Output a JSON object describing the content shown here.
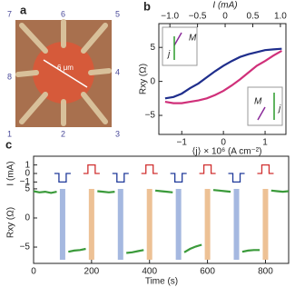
{
  "panel_a": {
    "label": "a",
    "scale": "6 μm",
    "contacts": [
      "1",
      "2",
      "3",
      "4",
      "5",
      "6",
      "7",
      "8"
    ]
  },
  "chart_data": [
    {
      "type": "line",
      "panel": "b",
      "xlabel": "⟨j⟩ × 10⁶ (A cm⁻²)",
      "ylabel": "Rxy (Ω)",
      "x2label": "I (mA)",
      "xlim": [
        -1.55,
        1.5
      ],
      "xticks": [
        {
          "value": -1,
          "label": "−1"
        },
        0,
        1
      ],
      "x2lim": [
        -1.2,
        1.1
      ],
      "x2ticks": [
        {
          "value": -1,
          "label": "−1.0"
        },
        {
          "value": -0.5,
          "label": "−0.5"
        },
        0,
        0.5,
        {
          "value": 1,
          "label": "1.0"
        }
      ],
      "ylim": [
        -7.8,
        8.5
      ],
      "yticks": [
        {
          "value": -5,
          "label": "−5"
        },
        0,
        5
      ],
      "annotations": [
        "M",
        "j",
        "M",
        "j"
      ],
      "series": [
        {
          "color": "#1f2e8c",
          "x": [
            -1.4,
            -1.2,
            -1.0,
            -0.8,
            -0.6,
            -0.4,
            -0.2,
            0,
            0.2,
            0.4,
            0.6,
            0.8,
            1.0,
            1.2,
            1.4
          ],
          "values": [
            -2.5,
            -2.3,
            -1.8,
            -1.0,
            -0.3,
            0.6,
            1.5,
            2.3,
            3.0,
            3.6,
            4.0,
            4.3,
            4.6,
            4.7,
            4.8
          ]
        },
        {
          "color": "#d0307a",
          "x": [
            -1.4,
            -1.2,
            -1.0,
            -0.8,
            -0.6,
            -0.4,
            -0.2,
            0,
            0.2,
            0.4,
            0.6,
            0.8,
            1.0,
            1.2,
            1.4
          ],
          "values": [
            -3.0,
            -3.2,
            -3.2,
            -3.0,
            -2.8,
            -2.5,
            -2.0,
            -1.4,
            -0.6,
            0.3,
            1.3,
            2.3,
            3.0,
            3.8,
            4.5
          ]
        }
      ]
    },
    {
      "type": "pulse",
      "panel": "c",
      "ylabel": "I (mA)",
      "xlim": [
        0,
        880
      ],
      "ylim": [
        -1.6,
        1.6
      ],
      "yticks": [
        1,
        0,
        {
          "value": -1,
          "label": "−1"
        }
      ],
      "series": [
        {
          "color": "#203a9a",
          "x": [
            100,
            300,
            500,
            700
          ],
          "values": [
            -1,
            -1,
            -1,
            -1
          ]
        },
        {
          "color": "#d03030",
          "x": [
            200,
            400,
            600,
            800
          ],
          "values": [
            1,
            1,
            1,
            1
          ]
        }
      ]
    },
    {
      "type": "line",
      "xlabel": "Time (s)",
      "ylabel": "Rxy (Ω)",
      "xlim": [
        0,
        880
      ],
      "xticks": [
        0,
        200,
        400,
        600,
        800
      ],
      "ylim": [
        -7.8,
        5.3
      ],
      "yticks": [
        {
          "value": -5,
          "label": "−5"
        },
        0,
        5
      ],
      "bands": [
        {
          "color": "#8fa6d8",
          "x": [
            100,
            300,
            500,
            700
          ]
        },
        {
          "color": "#e8b27a",
          "x": [
            200,
            400,
            600,
            800
          ]
        }
      ],
      "x": [
        0,
        20,
        40,
        60,
        80,
        100,
        120,
        140,
        160,
        180,
        200,
        220,
        240,
        260,
        280,
        300,
        320,
        340,
        360,
        380,
        400,
        420,
        440,
        460,
        480,
        500,
        520,
        540,
        560,
        580,
        600,
        620,
        640,
        660,
        680,
        700,
        720,
        740,
        760,
        780,
        800,
        820,
        840,
        860,
        880
      ],
      "series": [
        {
          "color": "#3a9a3a",
          "values": [
            4.6,
            4.4,
            4.5,
            4.3,
            4.5,
            null,
            -5.8,
            -5.6,
            -5.5,
            -5.3,
            null,
            4.6,
            4.5,
            4.4,
            4.5,
            null,
            -6.0,
            -5.9,
            -5.7,
            -5.5,
            null,
            4.7,
            4.6,
            4.5,
            4.4,
            null,
            -5.9,
            -5.3,
            -4.9,
            -4.6,
            null,
            4.8,
            4.7,
            4.6,
            4.5,
            null,
            -5.8,
            -5.6,
            -5.5,
            -5.5,
            null,
            4.7,
            4.6,
            4.5,
            4.6
          ]
        }
      ]
    }
  ]
}
